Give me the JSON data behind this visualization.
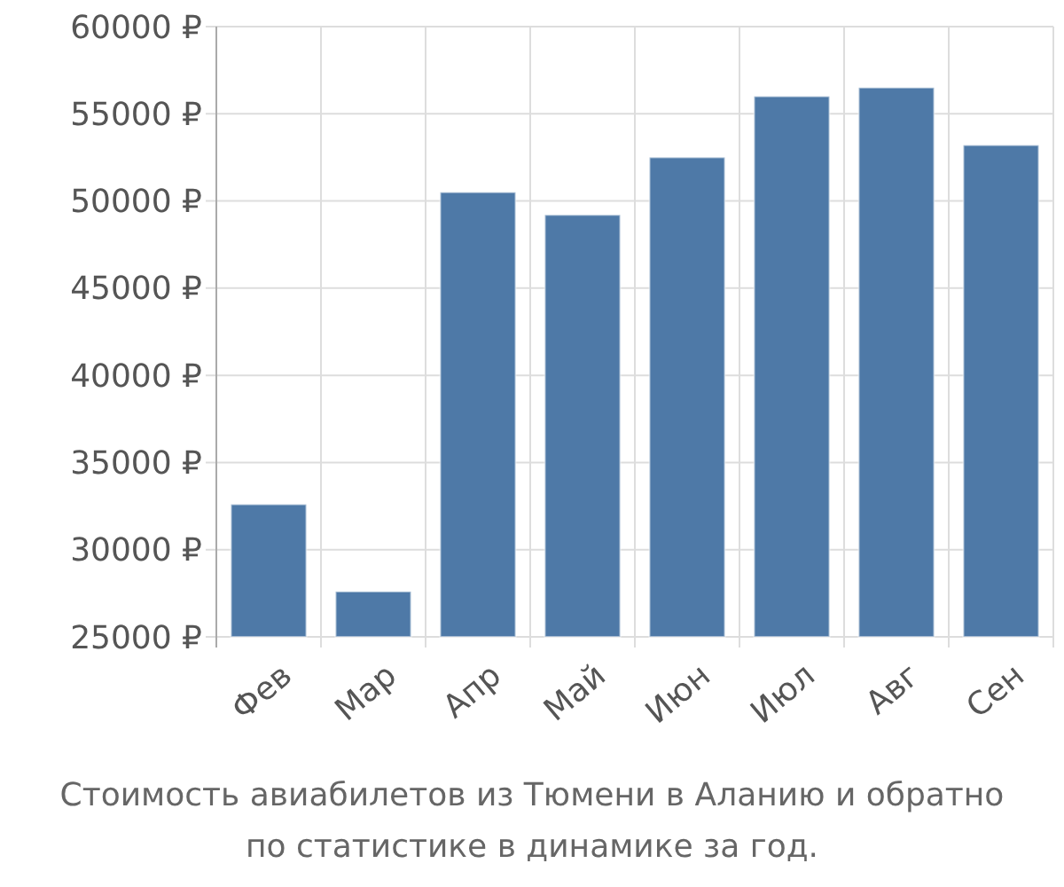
{
  "chart_data": {
    "type": "bar",
    "categories": [
      "Фев",
      "Мар",
      "Апр",
      "Май",
      "Июн",
      "Июл",
      "Авг",
      "Сен"
    ],
    "values": [
      32600,
      27600,
      50500,
      49200,
      52500,
      56000,
      56500,
      53200
    ],
    "color": "#4e79a7",
    "ylim": [
      25000,
      60000
    ],
    "yticks": [
      {
        "value": 25000,
        "label": "25000 ₽"
      },
      {
        "value": 30000,
        "label": "30000 ₽"
      },
      {
        "value": 35000,
        "label": "35000 ₽"
      },
      {
        "value": 40000,
        "label": "40000 ₽"
      },
      {
        "value": 45000,
        "label": "45000 ₽"
      },
      {
        "value": 50000,
        "label": "50000 ₽"
      },
      {
        "value": 55000,
        "label": "55000 ₽"
      },
      {
        "value": 60000,
        "label": "60000 ₽"
      }
    ],
    "grid": true,
    "annotations": [
      "Стоимость авиабилетов из Тюмени в Аланию и обратно",
      "по статистике в динамике за год."
    ]
  }
}
